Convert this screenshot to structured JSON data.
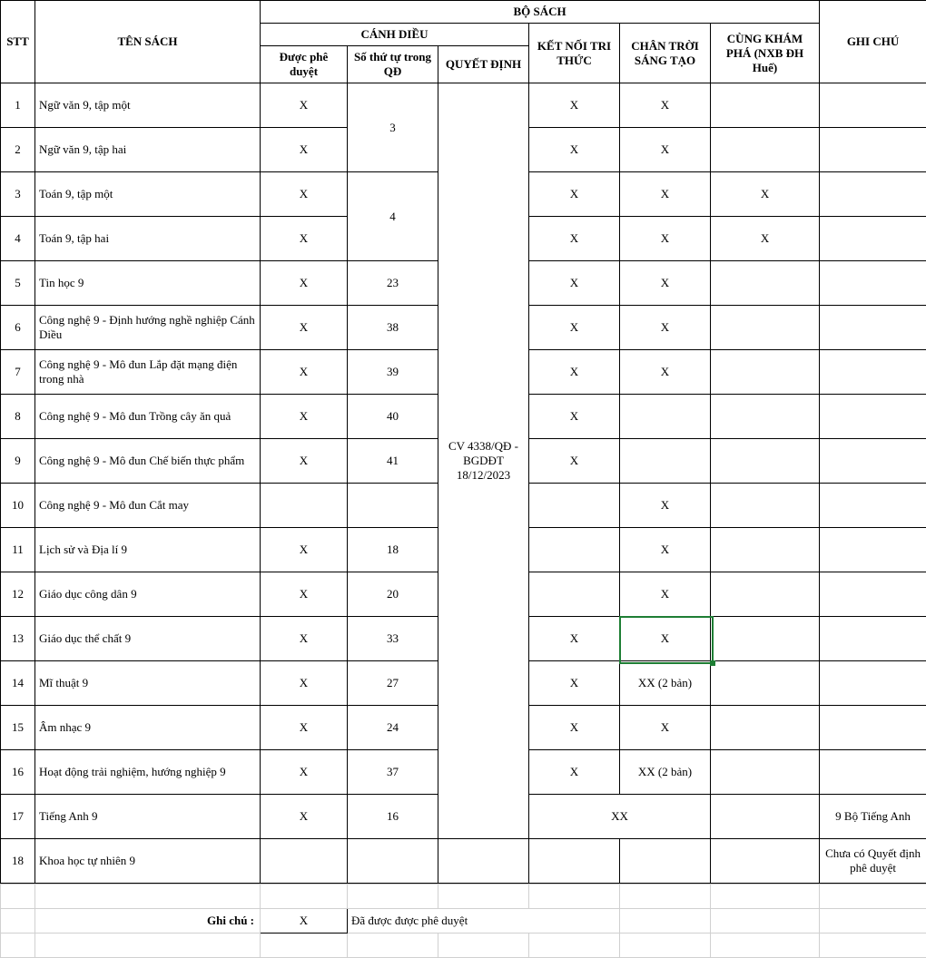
{
  "header": {
    "stt": "STT",
    "ten_sach": "TÊN SÁCH",
    "bo_sach": "BỘ SÁCH",
    "canh_dieu": "CÁNH DIỀU",
    "duoc_phe_duyet": "Được phê duyệt",
    "so_thu_tu": "Số thứ tự trong QĐ",
    "quyet_dinh": "QUYẾT ĐỊNH",
    "ket_noi": "KẾT NỐI TRI THỨC",
    "chan_troi": "CHÂN TRỜI SÁNG TẠO",
    "cung_kham_pha": "CÙNG KHÁM PHÁ (NXB ĐH Huế)",
    "ghi_chu": "GHI CHÚ"
  },
  "decision_text": "CV 4338/QĐ - BGDĐT 18/12/2023",
  "rows": [
    {
      "stt": "1",
      "name": "Ngữ văn 9, tập một",
      "appr": "X",
      "knt": "X",
      "ctst": "X",
      "ckp": "",
      "note": ""
    },
    {
      "stt": "2",
      "name": "Ngữ văn 9, tập hai",
      "appr": "X",
      "knt": "X",
      "ctst": "X",
      "ckp": "",
      "note": ""
    },
    {
      "stt": "3",
      "name": "Toán 9, tập một",
      "appr": "X",
      "knt": "X",
      "ctst": "X",
      "ckp": "X",
      "note": ""
    },
    {
      "stt": "4",
      "name": "Toán 9, tập hai",
      "appr": "X",
      "knt": "X",
      "ctst": "X",
      "ckp": "X",
      "note": ""
    },
    {
      "stt": "5",
      "name": "Tin học 9",
      "appr": "X",
      "seq": "23",
      "knt": "X",
      "ctst": "X",
      "ckp": "",
      "note": ""
    },
    {
      "stt": "6",
      "name": "Công nghệ 9 - Định hướng nghề nghiệp Cánh Diều",
      "appr": "X",
      "seq": "38",
      "knt": "X",
      "ctst": "X",
      "ckp": "",
      "note": ""
    },
    {
      "stt": "7",
      "name": "Công nghệ 9 - Mô đun Lắp đặt mạng điện trong nhà",
      "appr": "X",
      "seq": "39",
      "knt": "X",
      "ctst": "X",
      "ckp": "",
      "note": ""
    },
    {
      "stt": "8",
      "name": "Công nghệ 9 - Mô đun Trồng cây ăn quả",
      "appr": "X",
      "seq": "40",
      "knt": "X",
      "ctst": "",
      "ckp": "",
      "note": ""
    },
    {
      "stt": "9",
      "name": "Công nghệ 9 - Mô đun Chế biến thực phẩm",
      "appr": "X",
      "seq": "41",
      "knt": "X",
      "ctst": "",
      "ckp": "",
      "note": ""
    },
    {
      "stt": "10",
      "name": "Công nghệ 9 - Mô đun Cắt may",
      "appr": "",
      "seq": "",
      "knt": "",
      "ctst": "X",
      "ckp": "",
      "note": ""
    },
    {
      "stt": "11",
      "name": "Lịch sử và Địa lí 9",
      "appr": "X",
      "seq": "18",
      "knt": "",
      "ctst": "X",
      "ckp": "",
      "note": ""
    },
    {
      "stt": "12",
      "name": "Giáo dục công dân 9",
      "appr": "X",
      "seq": "20",
      "knt": "",
      "ctst": "X",
      "ckp": "",
      "note": ""
    },
    {
      "stt": "13",
      "name": "Giáo dục thể chất 9",
      "appr": "X",
      "seq": "33",
      "knt": "X",
      "ctst": "X",
      "ckp": "",
      "note": ""
    },
    {
      "stt": "14",
      "name": "Mĩ thuật 9",
      "appr": "X",
      "seq": "27",
      "knt": "X",
      "ctst": "XX (2 bản)",
      "ckp": "",
      "note": ""
    },
    {
      "stt": "15",
      "name": "Âm nhạc 9",
      "appr": "X",
      "seq": "24",
      "knt": "X",
      "ctst": "X",
      "ckp": "",
      "note": ""
    },
    {
      "stt": "16",
      "name": "Hoạt động trải nghiệm, hướng nghiệp 9",
      "appr": "X",
      "seq": "37",
      "knt": "X",
      "ctst": "XX (2 bản)",
      "ckp": "",
      "note": ""
    },
    {
      "stt": "17",
      "name": "Tiếng Anh 9",
      "appr": "X",
      "seq": "16",
      "knt_ctst_merged": "XX",
      "ckp": "",
      "note": "9 Bộ Tiếng Anh"
    },
    {
      "stt": "18",
      "name": "Khoa học tự nhiên 9",
      "appr": "",
      "seq": "",
      "knt": "",
      "ctst": "",
      "ckp": "",
      "note": "Chưa có Quyết định phê duyệt"
    }
  ],
  "seq_merged": {
    "group1": "3",
    "group2": "4"
  },
  "footer": {
    "label": "Ghi chú :",
    "mark": "X",
    "text": "Đã được được phê duyệt"
  },
  "style": {
    "selection_color": "#1e7e34",
    "grid_color": "#d0d0d0",
    "border_color": "#000000",
    "bg": "#ffffff",
    "font": "Times New Roman",
    "font_size_pt": 10
  },
  "selection_cell": {
    "row_index": 12,
    "col": "ctst"
  }
}
